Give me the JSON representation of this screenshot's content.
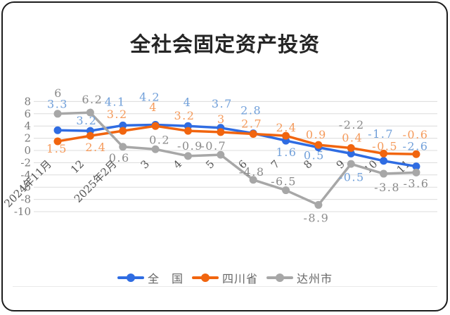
{
  "title": "全社会固定资产投资",
  "chart_data": {
    "type": "line",
    "title": "全社会固定资产投资",
    "categories": [
      "2024年11月",
      "12",
      "2025年2月",
      "3",
      "4",
      "5",
      "6",
      "7",
      "8",
      "9",
      "10",
      "11"
    ],
    "series": [
      {
        "name": "全　国",
        "color": "#2f6ce2",
        "label_color": "#71a0da",
        "values": [
          3.3,
          3.2,
          4.1,
          4.2,
          4,
          3.7,
          2.8,
          1.6,
          0.5,
          -0.5,
          -1.7,
          -2.6
        ]
      },
      {
        "name": "四川省",
        "color": "#f1650f",
        "label_color": "#f59b5c",
        "values": [
          1.5,
          2.4,
          3.2,
          4,
          3.2,
          3,
          2.7,
          2.4,
          0.9,
          0.4,
          -0.5,
          -0.6
        ]
      },
      {
        "name": "达州市",
        "color": "#a7a7a7",
        "label_color": "#8b8b8b",
        "values": [
          6,
          6.2,
          0.6,
          0.2,
          -0.9,
          -0.7,
          -4.8,
          -6.5,
          -8.9,
          -2.2,
          -3.8,
          -3.6
        ]
      }
    ],
    "y_ticks": [
      8,
      6,
      4,
      2,
      0,
      -2,
      -4,
      -6,
      -8,
      -10
    ],
    "ylim": [
      -10,
      8
    ],
    "grid": true,
    "legend_position": "bottom",
    "gridline_color": "#dcdcdc",
    "axis_label_color": "#7a7a7a"
  }
}
